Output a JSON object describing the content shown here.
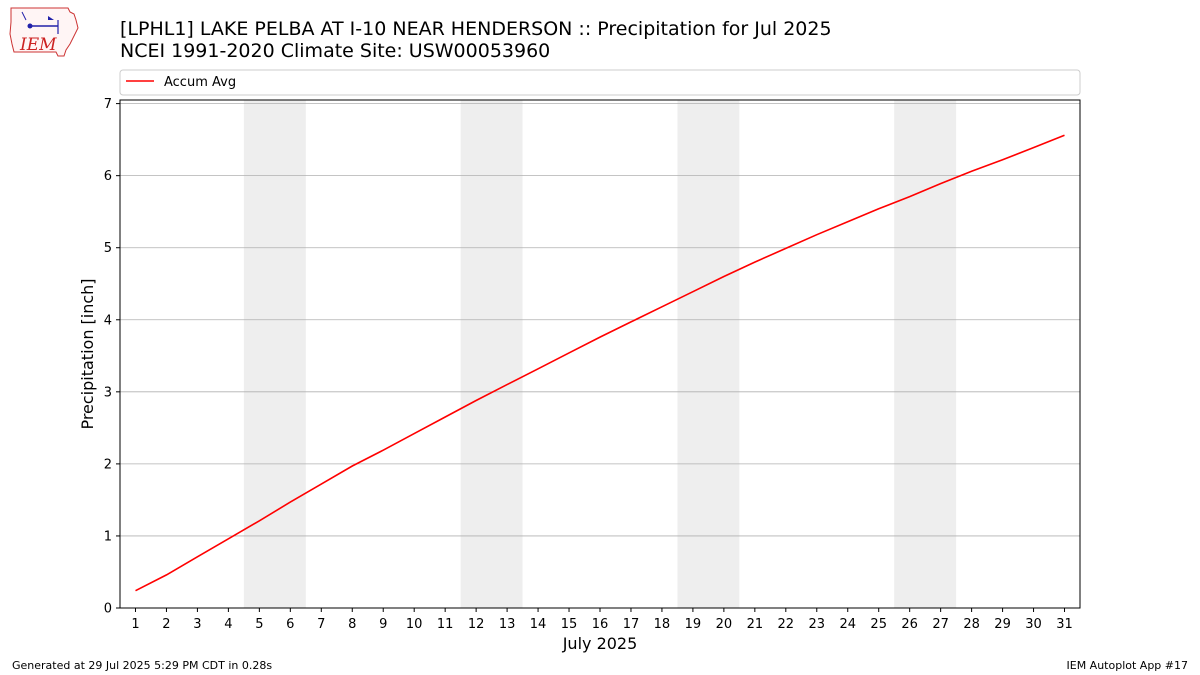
{
  "title": {
    "line1": "[LPHL1] LAKE PELBA AT I-10 NEAR HENDERSON :: Precipitation for Jul 2025",
    "line2": "NCEI 1991-2020 Climate Site: USW00053960"
  },
  "logo": {
    "text": "IEM",
    "icon": "iem-logo-icon"
  },
  "footer": {
    "left": "Generated at 29 Jul 2025 5:29 PM CDT in 0.28s",
    "right": "IEM Autoplot App #17"
  },
  "colors": {
    "line": "#ff0000",
    "weekend_shade": "#eeeeee",
    "grid": "#b0b0b0"
  },
  "chart_data": {
    "type": "line",
    "xlabel": "July 2025",
    "ylabel": "Precipitation [inch]",
    "xlim": [
      0.5,
      31.5
    ],
    "ylim": [
      0,
      7.05
    ],
    "yticks": [
      0,
      1,
      2,
      3,
      4,
      5,
      6,
      7
    ],
    "x": [
      1,
      2,
      3,
      4,
      5,
      6,
      7,
      8,
      9,
      10,
      11,
      12,
      13,
      14,
      15,
      16,
      17,
      18,
      19,
      20,
      21,
      22,
      23,
      24,
      25,
      26,
      27,
      28,
      29,
      30,
      31
    ],
    "legend": {
      "position": "top",
      "entries": [
        "Accum Avg"
      ]
    },
    "grid": "y",
    "shaded_day_ranges": [
      [
        4.5,
        6.5
      ],
      [
        11.5,
        13.5
      ],
      [
        18.5,
        20.5
      ],
      [
        25.5,
        27.5
      ]
    ],
    "series": [
      {
        "name": "Accum Avg",
        "color": "#ff0000",
        "values": [
          0.24,
          0.46,
          0.71,
          0.96,
          1.21,
          1.47,
          1.72,
          1.97,
          2.19,
          2.42,
          2.65,
          2.88,
          3.1,
          3.32,
          3.54,
          3.76,
          3.97,
          4.18,
          4.39,
          4.6,
          4.8,
          4.99,
          5.18,
          5.36,
          5.54,
          5.71,
          5.89,
          6.06,
          6.22,
          6.39,
          6.56
        ]
      }
    ]
  }
}
